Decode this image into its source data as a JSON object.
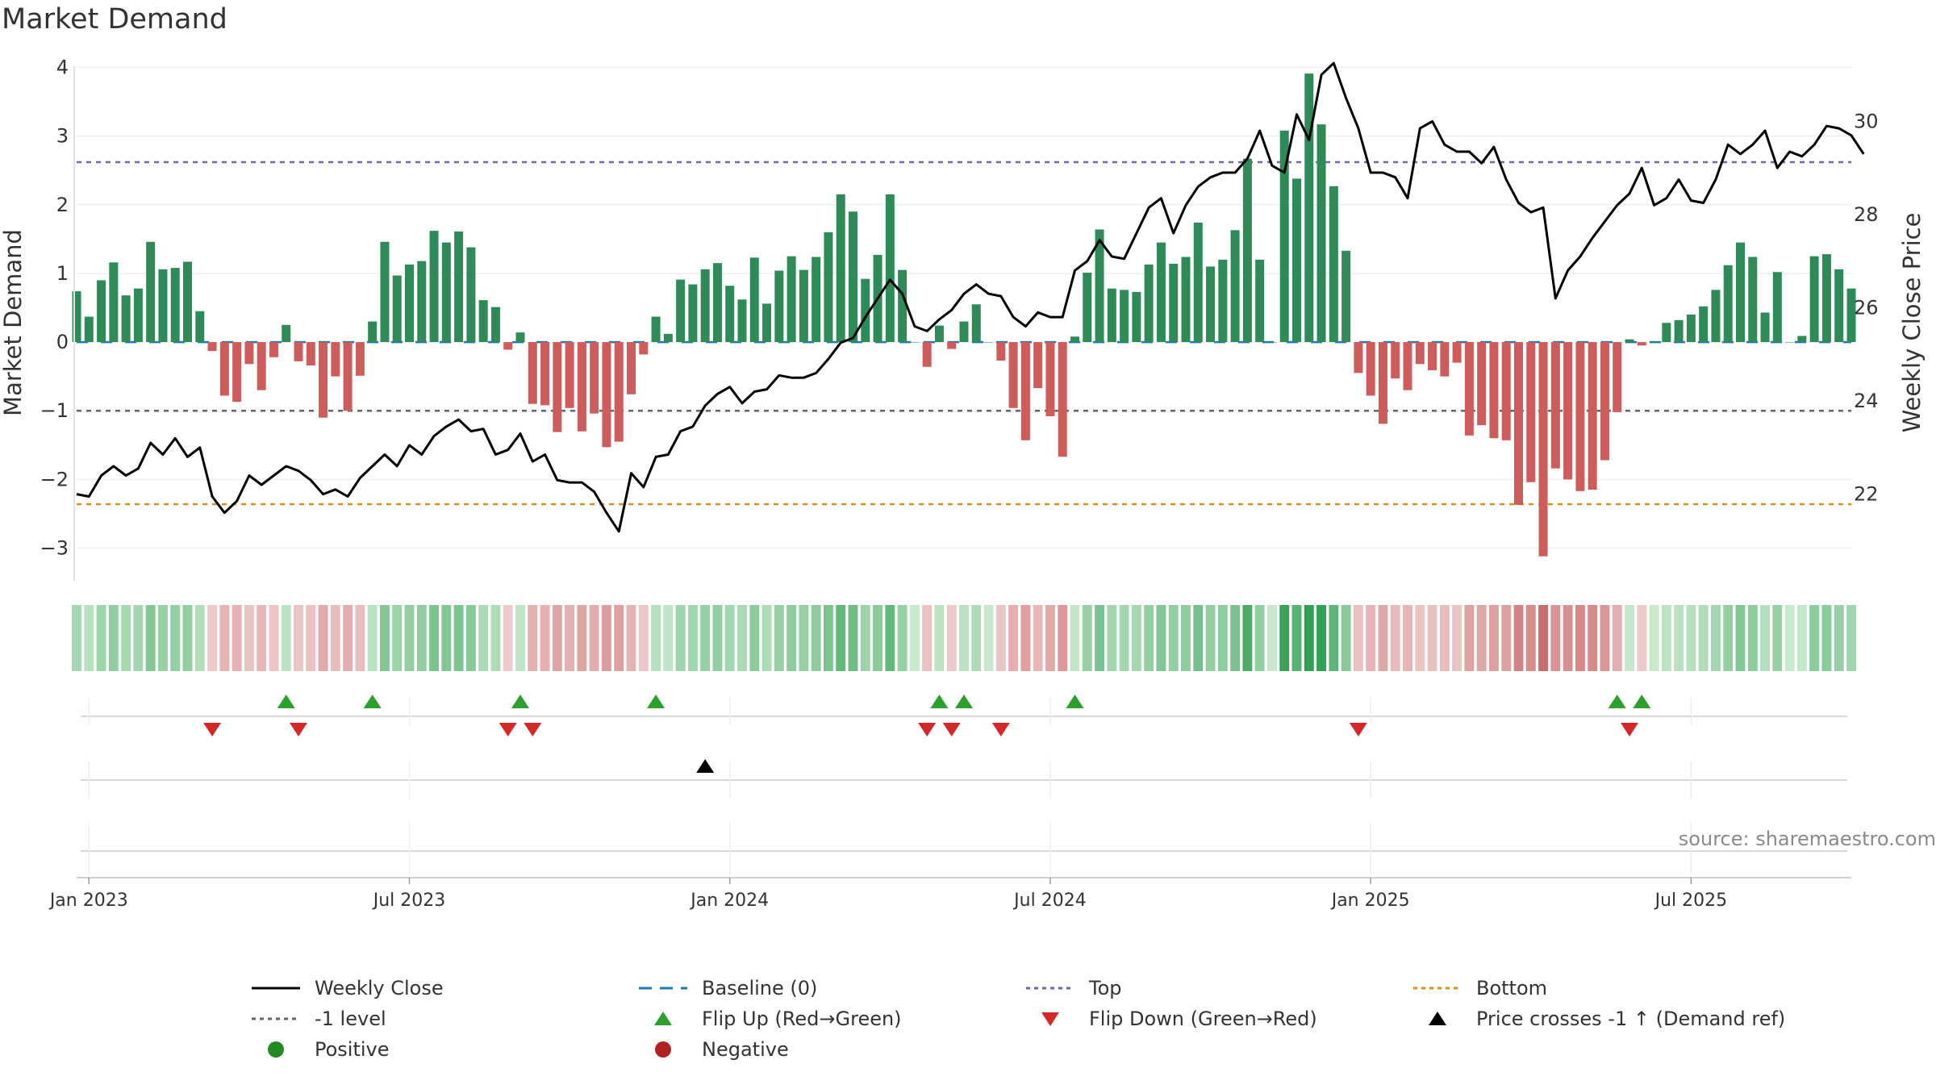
{
  "title": "Market Demand",
  "source": "source: sharemaestro.com",
  "colors": {
    "positive_bar": "#2e8b57",
    "negative_bar": "#cd5c5c",
    "close_line": "#000000",
    "baseline": "#1f77b4",
    "top_line": "#6a6aa8",
    "minus1_line": "#666666",
    "bottom_line": "#e08a1e",
    "flip_up": "#2ca02c",
    "flip_down": "#d62728",
    "price_cross": "#000000",
    "positive_dot": "#228b22",
    "negative_dot": "#b22222"
  },
  "chart_data": {
    "type": "bar",
    "title": "Market Demand",
    "ylabel": "Market Demand",
    "y2label": "Weekly Close Price",
    "ylim": [
      -3.3,
      4.3
    ],
    "y2lim": [
      20.4,
      31.6
    ],
    "y_ticks": [
      4,
      3,
      2,
      1,
      0,
      -1,
      -2,
      -3
    ],
    "y_tick_labels": [
      "4",
      "3",
      "2",
      "1",
      "0",
      "−1",
      "−2",
      "−3"
    ],
    "y2_ticks": [
      30,
      28,
      26,
      24,
      22
    ],
    "y2_tick_labels": [
      "30",
      "28",
      "26",
      "24",
      "22"
    ],
    "x_tick_labels": [
      "Jan 2023",
      "Jul 2023",
      "Jan 2024",
      "Jul 2024",
      "Jan 2025",
      "Jul 2025"
    ],
    "x_tick_index": [
      1,
      27,
      53,
      79,
      105,
      131
    ],
    "top_level": 2.62,
    "minus1_level": -1.0,
    "bottom_level": -2.36,
    "series": [
      {
        "name": "Market Demand",
        "values": [
          0.74,
          0.37,
          0.9,
          1.16,
          0.68,
          0.78,
          1.46,
          1.06,
          1.08,
          1.17,
          0.45,
          -0.13,
          -0.78,
          -0.87,
          -0.32,
          -0.7,
          -0.22,
          0.25,
          -0.28,
          -0.34,
          -1.1,
          -0.5,
          -1.0,
          -0.49,
          0.3,
          1.46,
          0.97,
          1.13,
          1.18,
          1.62,
          1.45,
          1.61,
          1.38,
          0.61,
          0.51,
          -0.11,
          0.14,
          -0.9,
          -0.92,
          -1.31,
          -0.96,
          -1.3,
          -1.04,
          -1.53,
          -1.45,
          -0.76,
          -0.18,
          0.37,
          0.12,
          0.91,
          0.84,
          1.06,
          1.15,
          0.82,
          0.62,
          1.23,
          0.56,
          1.04,
          1.25,
          1.05,
          1.24,
          1.6,
          2.15,
          1.9,
          0.92,
          1.27,
          2.15,
          1.05,
          0.0,
          -0.36,
          0.24,
          -0.1,
          0.3,
          0.55,
          0.0,
          -0.27,
          -0.96,
          -1.43,
          -0.67,
          -1.08,
          -1.67,
          0.08,
          1.01,
          1.64,
          0.78,
          0.76,
          0.73,
          1.13,
          1.45,
          1.14,
          1.24,
          1.74,
          1.1,
          1.2,
          1.63,
          2.67,
          1.2,
          0.0,
          3.08,
          2.38,
          3.91,
          3.17,
          2.27,
          1.33,
          -0.45,
          -0.78,
          -1.19,
          -0.53,
          -0.7,
          -0.32,
          -0.41,
          -0.5,
          -0.3,
          -1.36,
          -1.21,
          -1.4,
          -1.43,
          -2.37,
          -2.04,
          -3.12,
          -1.84,
          -2.0,
          -2.17,
          -2.15,
          -1.72,
          -1.02,
          0.04,
          -0.05,
          0.0,
          0.28,
          0.32,
          0.4,
          0.52,
          0.76,
          1.12,
          1.45,
          1.24,
          0.43,
          1.02,
          0.0,
          0.09,
          1.25,
          1.28,
          1.06,
          0.78
        ]
      },
      {
        "name": "Weekly Close",
        "axis": "right",
        "values": [
          22.0,
          21.95,
          22.4,
          22.6,
          22.4,
          22.55,
          23.1,
          22.85,
          23.2,
          22.8,
          23.0,
          21.95,
          21.6,
          21.85,
          22.4,
          22.2,
          22.4,
          22.6,
          22.5,
          22.3,
          22.0,
          22.1,
          21.95,
          22.35,
          22.6,
          22.85,
          22.6,
          23.05,
          22.85,
          23.25,
          23.45,
          23.6,
          23.35,
          23.4,
          22.85,
          22.95,
          23.3,
          22.7,
          22.85,
          22.3,
          22.25,
          22.25,
          22.05,
          21.6,
          21.2,
          22.45,
          22.15,
          22.8,
          22.85,
          23.35,
          23.45,
          23.9,
          24.15,
          24.3,
          23.95,
          24.2,
          24.25,
          24.55,
          24.5,
          24.5,
          24.6,
          24.9,
          25.25,
          25.35,
          25.8,
          26.2,
          26.6,
          26.3,
          25.6,
          25.5,
          25.75,
          25.95,
          26.3,
          26.5,
          26.3,
          26.25,
          25.8,
          25.6,
          25.9,
          25.8,
          25.8,
          26.8,
          27.0,
          27.45,
          27.1,
          27.05,
          27.6,
          28.15,
          28.35,
          27.6,
          28.2,
          28.6,
          28.8,
          28.9,
          28.9,
          29.2,
          29.8,
          29.05,
          28.9,
          30.15,
          29.6,
          31.0,
          31.25,
          30.5,
          29.85,
          28.9,
          28.9,
          28.8,
          28.35,
          29.85,
          30.0,
          29.5,
          29.35,
          29.35,
          29.1,
          29.45,
          28.75,
          28.25,
          28.05,
          28.15,
          26.2,
          26.8,
          27.1,
          27.5,
          27.85,
          28.2,
          28.45,
          29.0,
          28.2,
          28.35,
          28.75,
          28.3,
          28.25,
          28.75,
          29.5,
          29.3,
          29.5,
          29.8,
          29.0,
          29.35,
          29.25,
          29.5,
          29.9,
          29.85,
          29.7,
          29.3
        ]
      }
    ],
    "demand_strip": {
      "label": "demand intensity strip",
      "values_ref": "same as Market Demand series"
    },
    "flip_up_index": [
      17,
      24,
      36,
      47,
      70,
      72,
      81,
      125,
      127
    ],
    "flip_down_index": [
      11,
      18,
      35,
      37,
      69,
      71,
      75,
      104,
      126
    ],
    "price_cross_index": [
      51
    ]
  },
  "legend": [
    {
      "label": "Weekly Close",
      "symbol": "solid-line",
      "color": "#000000"
    },
    {
      "label": "Baseline (0)",
      "symbol": "dash-line",
      "color": "#1f77b4"
    },
    {
      "label": "Top",
      "symbol": "dot-line",
      "color": "#6a6aa8"
    },
    {
      "label": "Bottom",
      "symbol": "dot-line",
      "color": "#e08a1e"
    },
    {
      "label": "-1 level",
      "symbol": "dot-line",
      "color": "#666666"
    },
    {
      "label": "Flip Up (Red→Green)",
      "symbol": "triangle-up",
      "color": "#2ca02c"
    },
    {
      "label": "Flip Down (Green→Red)",
      "symbol": "triangle-down",
      "color": "#d62728"
    },
    {
      "label": "Price crosses -1 ↑ (Demand ref)",
      "symbol": "triangle-up",
      "color": "#000000"
    },
    {
      "label": "Positive",
      "symbol": "circle",
      "color": "#228b22"
    },
    {
      "label": "Negative",
      "symbol": "circle",
      "color": "#b22222"
    }
  ]
}
